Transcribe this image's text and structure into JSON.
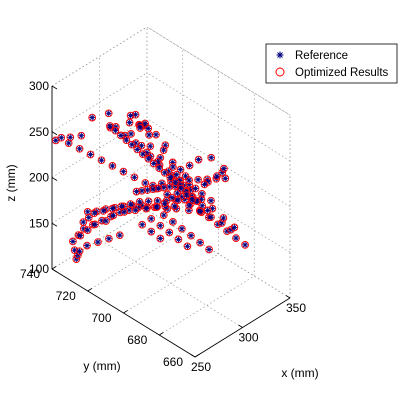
{
  "chart_data": {
    "type": "scatter",
    "projection": "3d",
    "title": "",
    "xlabel": "x (mm)",
    "ylabel": "y (mm)",
    "zlabel": "z (mm)",
    "xlim": [
      250,
      350
    ],
    "ylim": [
      660,
      740
    ],
    "zlim": [
      100,
      300
    ],
    "x_ticks": [
      "250",
      "300",
      "350"
    ],
    "y_ticks": [
      "660",
      "680",
      "700",
      "720",
      "740"
    ],
    "z_ticks": [
      "100",
      "150",
      "200",
      "250",
      "300"
    ],
    "grid": true,
    "legend_position": "top-right",
    "series": [
      {
        "name": "Reference",
        "marker": "asterisk",
        "color": "#000080"
      },
      {
        "name": "Optimized Results",
        "marker": "circle",
        "color": "#ff0000"
      }
    ],
    "points": [
      [
        270,
        700,
        292
      ],
      [
        272,
        703,
        288
      ],
      [
        268,
        698,
        296
      ],
      [
        274,
        706,
        294
      ],
      [
        276,
        700,
        285
      ],
      [
        280,
        712,
        282
      ],
      [
        279,
        712,
        275
      ],
      [
        272,
        720,
        280
      ],
      [
        266,
        726,
        272
      ],
      [
        270,
        718,
        268
      ],
      [
        284,
        706,
        278
      ],
      [
        286,
        710,
        270
      ],
      [
        288,
        702,
        268
      ],
      [
        290,
        712,
        262
      ],
      [
        292,
        708,
        258
      ],
      [
        294,
        700,
        255
      ],
      [
        288,
        716,
        252
      ],
      [
        296,
        702,
        246
      ],
      [
        297,
        710,
        240
      ],
      [
        298,
        698,
        236
      ],
      [
        300,
        706,
        230
      ],
      [
        302,
        700,
        226
      ],
      [
        304,
        694,
        222
      ],
      [
        299,
        716,
        232
      ],
      [
        301,
        712,
        224
      ],
      [
        303,
        708,
        218
      ],
      [
        305,
        702,
        212
      ],
      [
        306,
        696,
        208
      ],
      [
        304,
        690,
        204
      ],
      [
        308,
        700,
        200
      ],
      [
        302,
        684,
        196
      ],
      [
        300,
        690,
        192
      ],
      [
        298,
        696,
        188
      ],
      [
        296,
        700,
        184
      ],
      [
        294,
        706,
        180
      ],
      [
        292,
        712,
        176
      ],
      [
        290,
        716,
        172
      ],
      [
        288,
        720,
        168
      ],
      [
        286,
        724,
        163
      ],
      [
        284,
        728,
        158
      ],
      [
        282,
        732,
        152
      ],
      [
        280,
        736,
        148
      ],
      [
        306,
        700,
        215
      ],
      [
        308,
        694,
        210
      ],
      [
        310,
        688,
        206
      ],
      [
        312,
        684,
        202
      ],
      [
        309,
        690,
        196
      ],
      [
        307,
        696,
        192
      ],
      [
        305,
        700,
        188
      ],
      [
        303,
        704,
        184
      ],
      [
        301,
        708,
        180
      ],
      [
        299,
        712,
        176
      ],
      [
        297,
        716,
        172
      ],
      [
        295,
        720,
        166
      ],
      [
        293,
        724,
        160
      ],
      [
        291,
        728,
        154
      ],
      [
        289,
        732,
        148
      ],
      [
        287,
        736,
        142
      ],
      [
        285,
        738,
        136
      ],
      [
        283,
        740,
        130
      ],
      [
        296,
        708,
        200
      ],
      [
        298,
        704,
        206
      ],
      [
        300,
        700,
        212
      ],
      [
        302,
        696,
        216
      ],
      [
        304,
        692,
        220
      ],
      [
        306,
        688,
        224
      ],
      [
        308,
        684,
        228
      ],
      [
        310,
        680,
        232
      ],
      [
        312,
        676,
        236
      ],
      [
        300,
        694,
        202
      ],
      [
        302,
        690,
        198
      ],
      [
        304,
        686,
        194
      ],
      [
        306,
        682,
        190
      ],
      [
        308,
        678,
        186
      ],
      [
        310,
        674,
        182
      ],
      [
        312,
        670,
        178
      ],
      [
        314,
        666,
        174
      ],
      [
        296,
        696,
        192
      ],
      [
        294,
        700,
        188
      ],
      [
        292,
        704,
        184
      ],
      [
        290,
        708,
        180
      ],
      [
        288,
        712,
        176
      ],
      [
        286,
        716,
        170
      ],
      [
        284,
        720,
        164
      ],
      [
        282,
        724,
        156
      ],
      [
        280,
        728,
        148
      ],
      [
        278,
        732,
        140
      ],
      [
        276,
        736,
        132
      ],
      [
        274,
        738,
        124
      ],
      [
        272,
        740,
        116
      ],
      [
        270,
        738,
        110
      ],
      [
        268,
        736,
        104
      ],
      [
        266,
        734,
        112
      ],
      [
        264,
        732,
        120
      ],
      [
        268,
        730,
        126
      ],
      [
        272,
        726,
        132
      ],
      [
        276,
        722,
        138
      ],
      [
        280,
        718,
        144
      ],
      [
        300,
        704,
        170
      ],
      [
        302,
        700,
        166
      ],
      [
        304,
        696,
        162
      ],
      [
        306,
        692,
        158
      ],
      [
        308,
        688,
        154
      ],
      [
        310,
        684,
        150
      ],
      [
        298,
        710,
        160
      ],
      [
        300,
        706,
        156
      ],
      [
        302,
        702,
        152
      ],
      [
        304,
        698,
        148
      ],
      [
        306,
        694,
        144
      ],
      [
        296,
        714,
        150
      ],
      [
        298,
        710,
        146
      ],
      [
        300,
        706,
        142
      ],
      [
        262,
        730,
        250
      ],
      [
        258,
        734,
        246
      ],
      [
        256,
        738,
        242
      ],
      [
        254,
        740,
        238
      ],
      [
        260,
        736,
        236
      ],
      [
        264,
        732,
        232
      ],
      [
        268,
        728,
        228
      ],
      [
        272,
        724,
        224
      ],
      [
        276,
        720,
        220
      ],
      [
        280,
        716,
        216
      ],
      [
        284,
        712,
        212
      ],
      [
        288,
        708,
        208
      ],
      [
        292,
        704,
        204
      ],
      [
        296,
        700,
        200
      ],
      [
        300,
        696,
        196
      ],
      [
        304,
        692,
        192
      ],
      [
        308,
        688,
        188
      ],
      [
        312,
        684,
        184
      ],
      [
        316,
        680,
        180
      ],
      [
        318,
        676,
        176
      ],
      [
        314,
        672,
        186
      ],
      [
        310,
        676,
        194
      ],
      [
        306,
        680,
        202
      ],
      [
        302,
        684,
        210
      ],
      [
        298,
        688,
        218
      ],
      [
        294,
        692,
        226
      ],
      [
        290,
        696,
        234
      ],
      [
        286,
        700,
        242
      ],
      [
        282,
        704,
        250
      ],
      [
        278,
        708,
        258
      ],
      [
        274,
        712,
        264
      ],
      [
        272,
        716,
        270
      ],
      [
        320,
        690,
        210
      ],
      [
        322,
        686,
        220
      ],
      [
        320,
        682,
        230
      ],
      [
        318,
        680,
        238
      ],
      [
        316,
        686,
        244
      ],
      [
        314,
        692,
        236
      ],
      [
        312,
        696,
        226
      ],
      [
        310,
        700,
        218
      ],
      [
        324,
        694,
        200
      ],
      [
        322,
        698,
        192
      ],
      [
        320,
        702,
        186
      ],
      [
        318,
        706,
        180
      ],
      [
        316,
        708,
        174
      ],
      [
        312,
        710,
        168
      ],
      [
        308,
        712,
        164
      ],
      [
        304,
        716,
        160
      ],
      [
        300,
        720,
        156
      ],
      [
        296,
        724,
        152
      ],
      [
        292,
        728,
        146
      ],
      [
        288,
        730,
        140
      ],
      [
        284,
        734,
        134
      ],
      [
        280,
        736,
        128
      ],
      [
        276,
        738,
        122
      ],
      [
        306,
        698,
        206
      ],
      [
        304,
        700,
        204
      ],
      [
        302,
        702,
        202
      ],
      [
        300,
        704,
        200
      ],
      [
        298,
        706,
        198
      ],
      [
        296,
        708,
        196
      ],
      [
        294,
        710,
        194
      ],
      [
        292,
        712,
        192
      ],
      [
        290,
        714,
        190
      ],
      [
        308,
        696,
        200
      ],
      [
        310,
        694,
        196
      ],
      [
        312,
        692,
        192
      ],
      [
        314,
        690,
        188
      ],
      [
        316,
        688,
        184
      ],
      [
        303,
        699,
        210
      ],
      [
        305,
        697,
        204
      ],
      [
        307,
        695,
        198
      ],
      [
        309,
        693,
        194
      ],
      [
        301,
        701,
        214
      ],
      [
        299,
        703,
        218
      ],
      [
        297,
        705,
        222
      ],
      [
        295,
        707,
        226
      ],
      [
        293,
        709,
        230
      ],
      [
        291,
        711,
        234
      ],
      [
        289,
        713,
        238
      ],
      [
        287,
        715,
        242
      ],
      [
        285,
        717,
        246
      ],
      [
        283,
        719,
        250
      ],
      [
        281,
        721,
        254
      ],
      [
        279,
        723,
        258
      ]
    ]
  }
}
